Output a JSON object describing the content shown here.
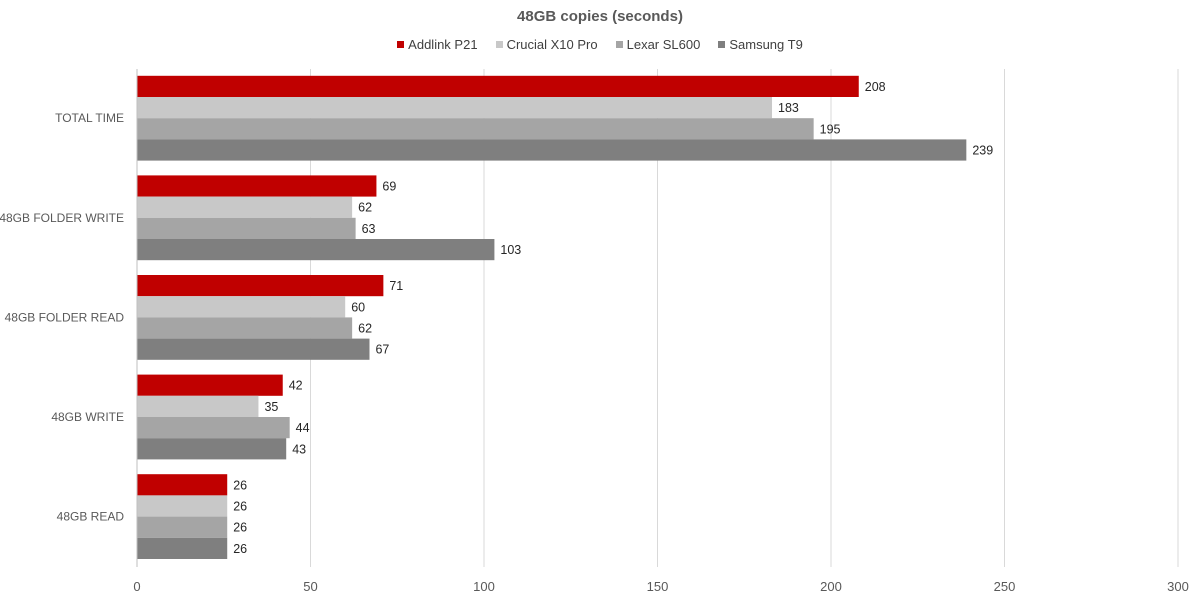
{
  "chart_data": {
    "type": "bar",
    "orientation": "horizontal",
    "title": "48GB copies (seconds)",
    "categories": [
      "TOTAL TIME",
      "48GB FOLDER WRITE",
      "48GB FOLDER READ",
      "48GB WRITE",
      "48GB READ"
    ],
    "series": [
      {
        "name": "Addlink P21",
        "color": "#c00000",
        "values": [
          208,
          69,
          71,
          42,
          26
        ]
      },
      {
        "name": "Crucial X10 Pro",
        "color": "#c8c8c8",
        "values": [
          183,
          62,
          60,
          35,
          26
        ]
      },
      {
        "name": "Lexar SL600",
        "color": "#a5a5a5",
        "values": [
          195,
          63,
          62,
          44,
          26
        ]
      },
      {
        "name": "Samsung T9",
        "color": "#7f7f7f",
        "values": [
          239,
          103,
          67,
          43,
          26
        ]
      }
    ],
    "xlim": [
      0,
      300
    ],
    "xticks": [
      0,
      50,
      100,
      150,
      200,
      250,
      300
    ],
    "xlabel": "",
    "ylabel": "",
    "grid": true,
    "legend_position": "top"
  }
}
